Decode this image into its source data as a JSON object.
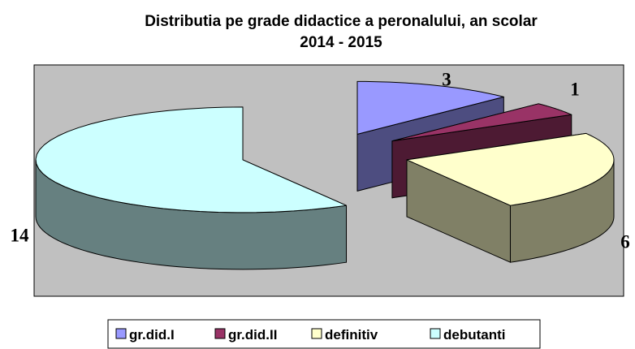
{
  "chart_data": {
    "type": "pie",
    "title": [
      "Distributia pe grade didactice a peronalului, an scolar",
      "2014 - 2015"
    ],
    "categories": [
      "gr.did.I",
      "gr.did.II",
      "definitiv",
      "debutanti"
    ],
    "values": [
      3,
      1,
      6,
      14
    ],
    "colors": [
      "#9999ff",
      "#993366",
      "#ffffcc",
      "#ccffff"
    ],
    "legend": "bottom"
  }
}
